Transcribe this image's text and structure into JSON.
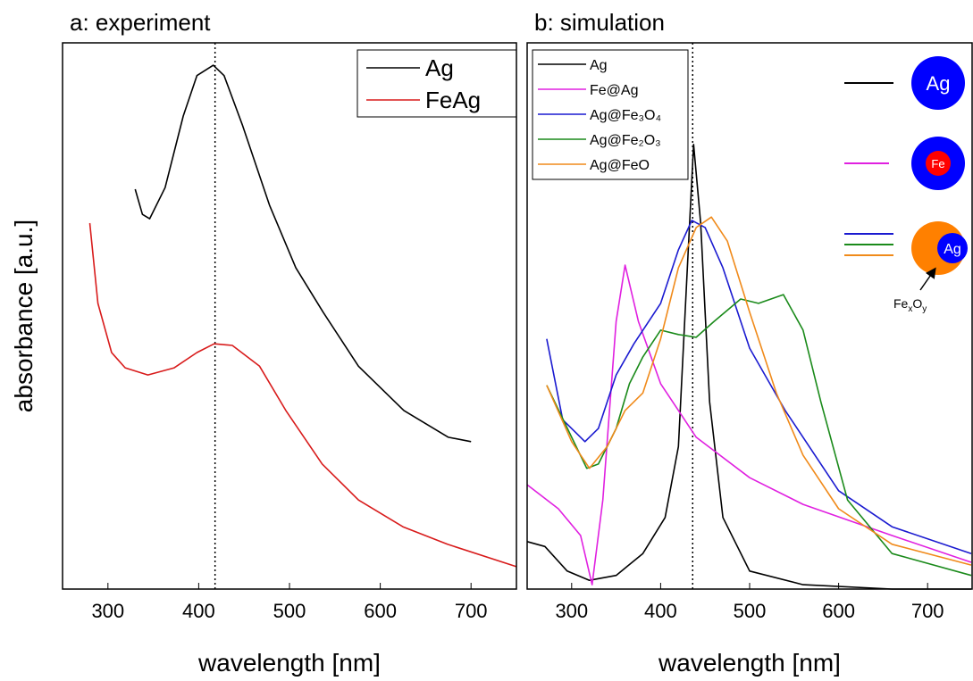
{
  "chart_data": [
    {
      "type": "line",
      "title": "a: experiment",
      "xlabel": "wavelength [nm]",
      "ylabel": "absorbance [a.u.]",
      "xlim": [
        250,
        750
      ],
      "xticks": [
        300,
        400,
        500,
        600,
        700
      ],
      "ylim": [
        0,
        1
      ],
      "vline": 418,
      "legend": "upper right",
      "series": [
        {
          "name": "Ag",
          "color": "#000000",
          "x": [
            330,
            338,
            346,
            363,
            383,
            398,
            416,
            428,
            448,
            478,
            507,
            537,
            576,
            626,
            675,
            700
          ],
          "values": [
            0.732,
            0.686,
            0.678,
            0.735,
            0.866,
            0.94,
            0.959,
            0.94,
            0.85,
            0.703,
            0.588,
            0.507,
            0.408,
            0.327,
            0.278,
            0.27
          ]
        },
        {
          "name": "FeAg",
          "color": "#d81b1b",
          "x": [
            280,
            289,
            304,
            319,
            344,
            373,
            398,
            417,
            437,
            467,
            496,
            536,
            576,
            625,
            674,
            750
          ],
          "values": [
            0.67,
            0.523,
            0.433,
            0.405,
            0.392,
            0.405,
            0.433,
            0.449,
            0.446,
            0.408,
            0.327,
            0.229,
            0.163,
            0.114,
            0.082,
            0.041
          ]
        }
      ]
    },
    {
      "type": "line",
      "title": "b: simulation",
      "xlabel": "wavelength [nm]",
      "xlim": [
        250,
        750
      ],
      "xticks": [
        300,
        400,
        500,
        600,
        700
      ],
      "ylim": [
        0,
        1
      ],
      "vline": 436,
      "legend": "upper left",
      "series": [
        {
          "name": "Ag",
          "color": "#000000",
          "x": [
            250,
            270,
            295,
            320,
            350,
            380,
            405,
            420,
            430,
            437,
            445,
            455,
            470,
            500,
            560,
            660,
            749
          ],
          "values": [
            0.087,
            0.078,
            0.033,
            0.016,
            0.025,
            0.065,
            0.131,
            0.261,
            0.588,
            0.814,
            0.67,
            0.343,
            0.131,
            0.033,
            0.008,
            0.0,
            0.0
          ]
        },
        {
          "name": "Fe@Ag",
          "color": "#e020e0",
          "x": [
            250,
            285,
            310,
            323,
            335,
            350,
            360,
            375,
            400,
            440,
            500,
            560,
            660,
            749
          ],
          "values": [
            0.191,
            0.147,
            0.098,
            0.008,
            0.163,
            0.49,
            0.593,
            0.49,
            0.376,
            0.278,
            0.204,
            0.155,
            0.098,
            0.049
          ]
        },
        {
          "name": "Ag@Fe₃O₄",
          "color": "#1a1ad0",
          "x": [
            272,
            290,
            315,
            330,
            350,
            370,
            400,
            420,
            435,
            450,
            470,
            500,
            540,
            600,
            660,
            749
          ],
          "values": [
            0.458,
            0.31,
            0.27,
            0.294,
            0.392,
            0.449,
            0.523,
            0.621,
            0.675,
            0.662,
            0.588,
            0.441,
            0.327,
            0.18,
            0.114,
            0.065
          ]
        },
        {
          "name": "Ag@Fe₂O₃",
          "color": "#1a8a1a",
          "x": [
            272,
            300,
            317,
            330,
            350,
            365,
            380,
            400,
            420,
            440,
            460,
            490,
            510,
            538,
            560,
            580,
            610,
            660,
            749
          ],
          "values": [
            0.373,
            0.278,
            0.221,
            0.229,
            0.294,
            0.376,
            0.425,
            0.474,
            0.466,
            0.461,
            0.49,
            0.531,
            0.523,
            0.539,
            0.474,
            0.343,
            0.163,
            0.065,
            0.025
          ]
        },
        {
          "name": "Ag@FeO",
          "color": "#f08a1a",
          "x": [
            272,
            300,
            320,
            340,
            360,
            380,
            400,
            420,
            440,
            457,
            475,
            500,
            530,
            560,
            600,
            660,
            749
          ],
          "values": [
            0.373,
            0.27,
            0.221,
            0.261,
            0.327,
            0.359,
            0.458,
            0.588,
            0.662,
            0.681,
            0.637,
            0.507,
            0.359,
            0.245,
            0.147,
            0.082,
            0.044
          ]
        }
      ],
      "schematic": {
        "labels": [
          "Ag",
          "Fe",
          "Ag"
        ],
        "shell": [
          "Fe",
          "x",
          "O",
          "y"
        ]
      }
    }
  ]
}
